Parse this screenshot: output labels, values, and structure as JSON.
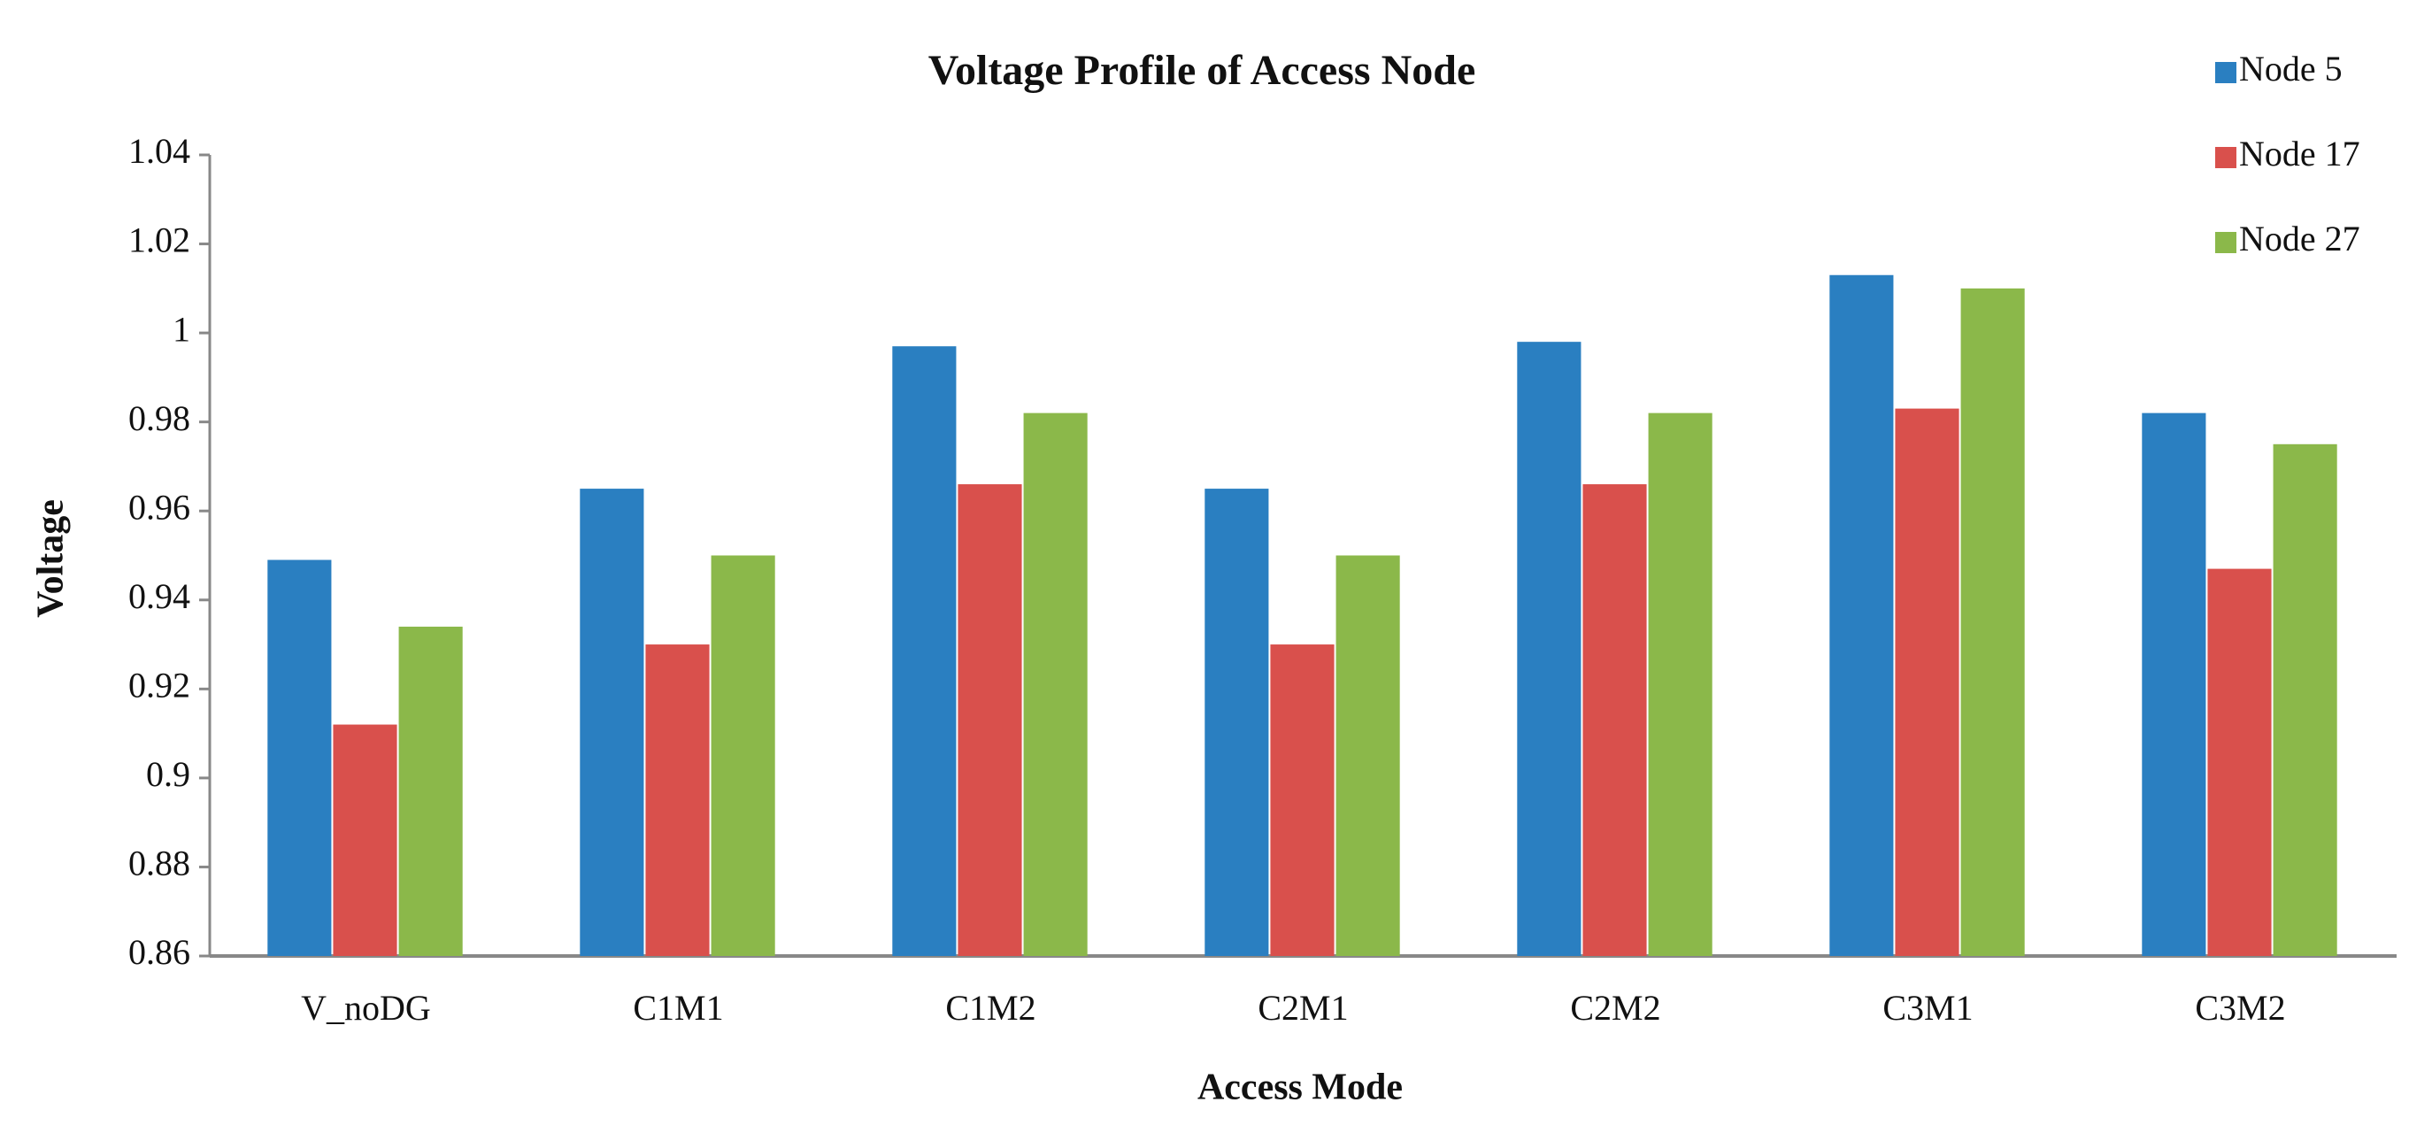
{
  "chart_data": {
    "type": "bar",
    "title": "Voltage Profile of Access Node",
    "x_label": "Access Mode",
    "y_label": "Voltage",
    "categories": [
      "V_noDG",
      "C1M1",
      "C1M2",
      "C2M1",
      "C2M2",
      "C3M1",
      "C3M2"
    ],
    "series": [
      {
        "name": "Node 5",
        "color": "#2a7fc1",
        "values": [
          0.949,
          0.965,
          0.997,
          0.965,
          0.998,
          1.013,
          0.982
        ]
      },
      {
        "name": "Node 17",
        "color": "#d9504c",
        "values": [
          0.912,
          0.93,
          0.966,
          0.93,
          0.966,
          0.983,
          0.947
        ]
      },
      {
        "name": "Node 27",
        "color": "#8bb84a",
        "values": [
          0.934,
          0.95,
          0.982,
          0.95,
          0.982,
          1.01,
          0.975
        ]
      }
    ],
    "ylim": [
      0.86,
      1.04
    ],
    "yticks": [
      0.86,
      0.88,
      0.9,
      0.92,
      0.94,
      0.96,
      0.98,
      1,
      1.02,
      1.04
    ],
    "grid": false,
    "legend": "top-right"
  }
}
